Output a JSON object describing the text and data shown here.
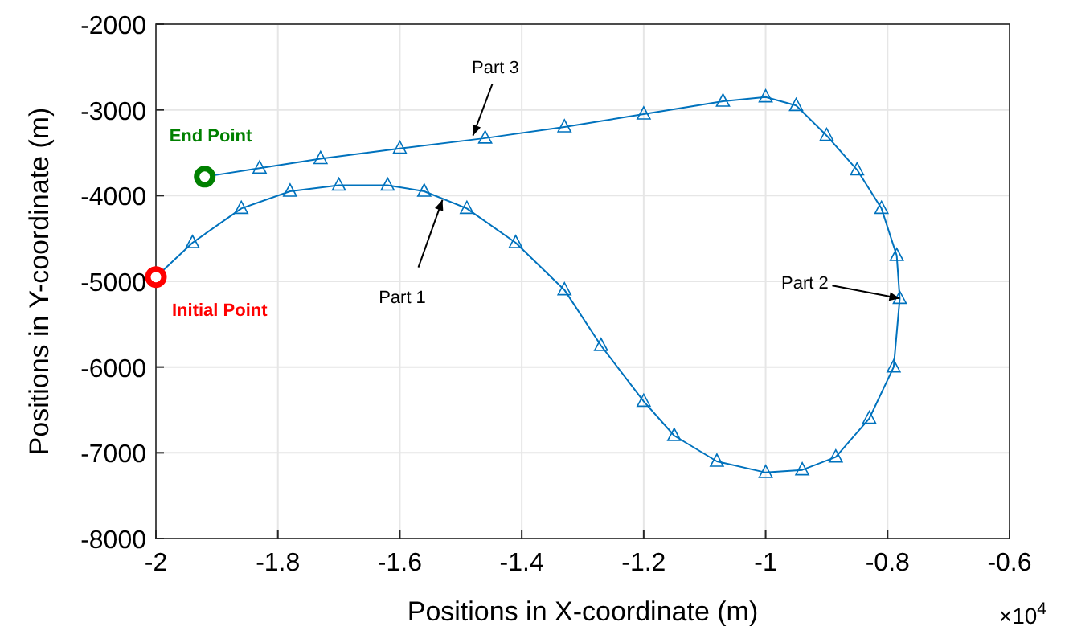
{
  "chart_data": {
    "type": "line",
    "xlabel": "Positions in X-coordinate (m)",
    "ylabel": "Positions in Y-coordinate (m)",
    "xlim": [
      -2,
      -0.6
    ],
    "ylim": [
      -8000,
      -2000
    ],
    "xticks": [
      -2,
      -1.8,
      -1.6,
      -1.4,
      -1.2,
      -1,
      -0.8,
      -0.6
    ],
    "yticks": [
      -8000,
      -7000,
      -6000,
      -5000,
      -4000,
      -3000,
      -2000
    ],
    "grid": true,
    "marker": "triangle",
    "line_style": "solid",
    "series": [
      {
        "color": "#0072bd",
        "x": [
          -2,
          -1.94,
          -1.86,
          -1.78,
          -1.7,
          -1.62,
          -1.56,
          -1.49,
          -1.41,
          -1.33,
          -1.27,
          -1.2,
          -1.15,
          -1.08,
          -1,
          -0.94,
          -0.885,
          -0.83,
          -0.79,
          -0.78,
          -0.785,
          -0.81,
          -0.85,
          -0.9,
          -0.95,
          -1,
          -1.07,
          -1.2,
          -1.33,
          -1.46,
          -1.6,
          -1.73,
          -1.83,
          -1.92
        ],
        "values": [
          -4950,
          -4550,
          -4150,
          -3950,
          -3880,
          -3880,
          -3950,
          -4150,
          -4550,
          -5100,
          -5750,
          -6400,
          -6800,
          -7100,
          -7230,
          -7200,
          -7050,
          -6600,
          -6000,
          -5200,
          -4700,
          -4150,
          -3700,
          -3300,
          -2950,
          -2850,
          -2900,
          -3050,
          -3200,
          -3330,
          -3450,
          -3570,
          -3680,
          -3780
        ]
      },
      {
        "type": "scatter",
        "color": "#ff0000",
        "marker": "circle",
        "x": [
          -2
        ],
        "values": [
          -4950
        ]
      },
      {
        "type": "scatter",
        "color": "#008000",
        "marker": "circle",
        "x": [
          -1.92
        ],
        "values": [
          -3780
        ]
      }
    ],
    "annotations": [
      {
        "text": "Initial Point",
        "x": -2,
        "y": -4950
      },
      {
        "text": "End Point",
        "x": -1.92,
        "y": -3780
      },
      {
        "text": "Part 1",
        "x": -1.53,
        "y": -4050
      },
      {
        "text": "Part 2",
        "x": -0.78,
        "y": -5200
      },
      {
        "text": "Part 3",
        "x": -1.48,
        "y": -3300
      },
      "×10$^{4}$"
    ]
  }
}
